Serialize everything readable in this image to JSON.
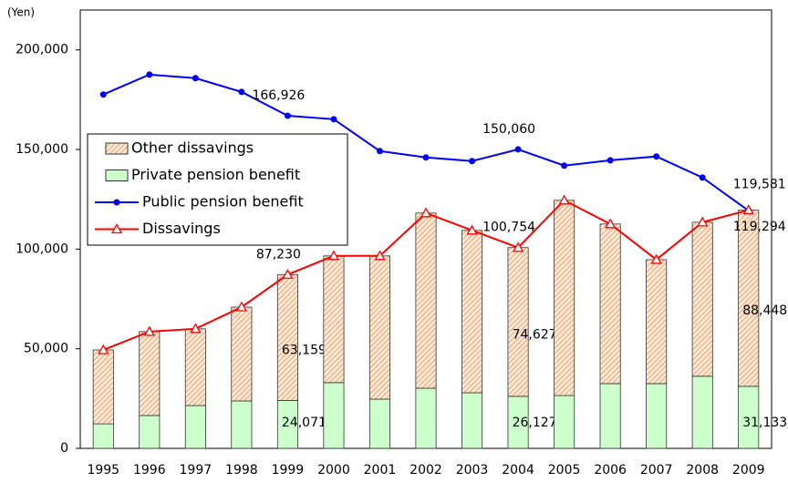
{
  "chart_data": {
    "type": "bar",
    "stacked": true,
    "y_label": "(Yen)",
    "categories": [
      "1995",
      "1996",
      "1997",
      "1998",
      "1999",
      "2000",
      "2001",
      "2002",
      "2003",
      "2004",
      "2005",
      "2006",
      "2007",
      "2008",
      "2009"
    ],
    "series": [
      {
        "name": "Other dissavings",
        "type": "bar",
        "color": "#e0905a",
        "fill": "#fde8d4",
        "values": [
          37100,
          42100,
          38500,
          47100,
          63159,
          63600,
          71900,
          87900,
          81500,
          74627,
          98000,
          80100,
          62200,
          77300,
          88448
        ],
        "value_labels": [
          null,
          null,
          null,
          null,
          "63,159",
          null,
          null,
          null,
          null,
          "74,627",
          null,
          null,
          null,
          null,
          "88,448"
        ]
      },
      {
        "name": "Private pension benefit",
        "type": "bar",
        "color": "#ccffcc",
        "values": [
          12300,
          16500,
          21500,
          23800,
          24071,
          33000,
          24700,
          30200,
          27900,
          26127,
          26500,
          32500,
          32500,
          36200,
          31133
        ],
        "value_labels": [
          null,
          null,
          null,
          null,
          "24,071",
          null,
          null,
          null,
          null,
          "26,127",
          null,
          null,
          null,
          null,
          "31,133"
        ]
      },
      {
        "name": "Public pension benefit",
        "type": "line",
        "marker": "circle",
        "color": "#0000ff",
        "values": [
          177600,
          187600,
          185800,
          178900,
          166926,
          165200,
          149200,
          146000,
          144200,
          150060,
          141900,
          144600,
          146500,
          135900,
          119294
        ],
        "value_labels": [
          null,
          null,
          null,
          null,
          "166,926",
          null,
          null,
          null,
          null,
          "150,060",
          null,
          null,
          null,
          null,
          "119,294"
        ]
      },
      {
        "name": "Dissavings",
        "type": "line",
        "marker": "triangle",
        "color": "#ff0000",
        "values": [
          49400,
          58600,
          60000,
          70900,
          87230,
          96600,
          96600,
          118100,
          109400,
          100754,
          124500,
          112600,
          94700,
          113500,
          119581
        ],
        "value_labels": [
          null,
          null,
          null,
          null,
          "87,230",
          null,
          null,
          null,
          null,
          "100,754",
          null,
          null,
          null,
          null,
          "119,581"
        ]
      }
    ],
    "ylim": [
      0,
      220000
    ],
    "yticks": [
      0,
      {
        "value": 50000,
        "label": "50,000"
      },
      {
        "value": 100000,
        "label": "100,000"
      },
      {
        "value": 150000,
        "label": "150,000"
      },
      {
        "value": 200000,
        "label": "200,000"
      }
    ],
    "grid": false,
    "legend": "left"
  }
}
